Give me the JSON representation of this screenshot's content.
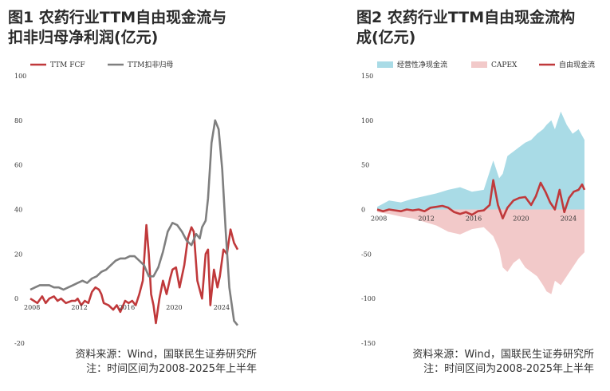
{
  "left_title": {
    "line1": "图1 农药行业TTM自由现金流与",
    "line2": "扣非归母净利润(亿元)"
  },
  "right_title": {
    "line1": "图2 农药行业TTM自由现金流构",
    "line2": "成(亿元)"
  },
  "left_note": {
    "source": "资料来源：Wind，国联民生证券研究所",
    "note": "注：时间区间为2008-2025年上半年"
  },
  "right_note": {
    "source": "资料来源：Wind，国联民生证券研究所",
    "note": "注：时间区间为2008-2025年上半年"
  },
  "colors": {
    "fcf_line": "#c0393b",
    "profit_line": "#7f7f7f",
    "op_cf_area": "#a9dbe6",
    "capex_area": "#f2c9c9",
    "title": "#2b2b2b"
  },
  "chart_data": [
    {
      "type": "line",
      "xlim": [
        2008,
        2025.5
      ],
      "ylim": [
        -20,
        100
      ],
      "yticks": [
        -20,
        0,
        20,
        40,
        60,
        80,
        100
      ],
      "xticks": [
        2008,
        2012,
        2016,
        2020,
        2024
      ],
      "legend": "top-left",
      "series": [
        {
          "name": "TTM FCF",
          "color": "#c0393b",
          "x": [
            2008.0,
            2008.3,
            2008.6,
            2009.0,
            2009.3,
            2009.6,
            2010.0,
            2010.3,
            2010.6,
            2011.0,
            2011.5,
            2011.8,
            2012.0,
            2012.3,
            2012.6,
            2012.9,
            2013.2,
            2013.5,
            2013.8,
            2014.0,
            2014.2,
            2014.6,
            2015.0,
            2015.3,
            2015.6,
            2016.0,
            2016.3,
            2016.6,
            2016.9,
            2017.2,
            2017.5,
            2017.8,
            2018.0,
            2018.2,
            2018.4,
            2018.6,
            2018.9,
            2019.2,
            2019.5,
            2019.8,
            2020.0,
            2020.3,
            2020.6,
            2021.0,
            2021.3,
            2021.6,
            2021.8,
            2022.1,
            2022.5,
            2022.8,
            2023.0,
            2023.2,
            2023.5,
            2023.8,
            2024.0,
            2024.3,
            2024.6,
            2024.9,
            2025.2,
            2025.5
          ],
          "values": [
            0,
            -1,
            -2,
            1,
            -2,
            0,
            1,
            -1,
            0,
            -2,
            -1,
            -1,
            0,
            -3,
            -1,
            -2,
            3,
            5,
            4,
            2,
            -2,
            -3,
            -5,
            -3,
            -6,
            -1,
            -2,
            -1,
            -3,
            2,
            8,
            33,
            20,
            2,
            -3,
            -11,
            0,
            8,
            2,
            9,
            13,
            14,
            5,
            15,
            27,
            32,
            30,
            8,
            0,
            20,
            22,
            -3,
            13,
            5,
            10,
            22,
            20,
            31,
            25,
            22
          ]
        },
        {
          "name": "TTM扣非归母",
          "color": "#7f7f7f",
          "x": [
            2008.0,
            2008.4,
            2008.8,
            2009.2,
            2009.6,
            2010.0,
            2010.4,
            2010.8,
            2011.2,
            2011.6,
            2012.0,
            2012.4,
            2012.8,
            2013.2,
            2013.6,
            2014.0,
            2014.4,
            2014.8,
            2015.2,
            2015.6,
            2016.0,
            2016.4,
            2016.8,
            2017.2,
            2017.6,
            2018.0,
            2018.4,
            2018.8,
            2019.2,
            2019.6,
            2020.0,
            2020.4,
            2020.8,
            2021.2,
            2021.6,
            2022.0,
            2022.3,
            2022.5,
            2022.8,
            2023.0,
            2023.3,
            2023.6,
            2023.9,
            2024.2,
            2024.5,
            2024.8,
            2025.2,
            2025.5
          ],
          "values": [
            4,
            5,
            6,
            6,
            6,
            5,
            5,
            4,
            5,
            6,
            7,
            8,
            7,
            9,
            10,
            12,
            13,
            15,
            17,
            18,
            18,
            19,
            19,
            17,
            15,
            10,
            10,
            14,
            21,
            30,
            34,
            33,
            30,
            26,
            24,
            29,
            27,
            32,
            35,
            45,
            70,
            80,
            76,
            58,
            30,
            5,
            -10,
            -12
          ]
        }
      ]
    },
    {
      "type": "area",
      "xlim": [
        2008,
        2025.5
      ],
      "ylim": [
        -150,
        150
      ],
      "yticks": [
        -150,
        -100,
        -50,
        0,
        50,
        100,
        150
      ],
      "xticks": [
        2008,
        2012,
        2016,
        2020,
        2024
      ],
      "legend": "top",
      "series": [
        {
          "name": "经营性净现金流",
          "kind": "area",
          "color": "#a9dbe6",
          "x": [
            2008.0,
            2009.0,
            2010.0,
            2011.0,
            2012.0,
            2013.0,
            2014.0,
            2015.0,
            2016.0,
            2017.0,
            2017.8,
            2018.3,
            2018.6,
            2019.0,
            2019.5,
            2020.0,
            2020.5,
            2021.0,
            2021.5,
            2022.0,
            2022.3,
            2022.7,
            2023.0,
            2023.5,
            2024.0,
            2024.5,
            2025.0,
            2025.5
          ],
          "values": [
            3,
            10,
            8,
            12,
            15,
            18,
            22,
            25,
            20,
            22,
            55,
            35,
            40,
            60,
            65,
            70,
            75,
            78,
            85,
            90,
            95,
            100,
            90,
            110,
            95,
            85,
            90,
            78
          ]
        },
        {
          "name": "CAPEX",
          "kind": "area",
          "color": "#f2c9c9",
          "x": [
            2008.0,
            2009.0,
            2010.0,
            2011.0,
            2012.0,
            2013.0,
            2014.0,
            2015.0,
            2016.0,
            2017.0,
            2017.8,
            2018.3,
            2018.6,
            2019.0,
            2019.5,
            2020.0,
            2020.5,
            2021.0,
            2021.5,
            2022.0,
            2022.3,
            2022.7,
            2023.0,
            2023.5,
            2024.0,
            2024.5,
            2025.0,
            2025.5
          ],
          "values": [
            -3,
            -5,
            -8,
            -10,
            -14,
            -18,
            -25,
            -28,
            -22,
            -20,
            -30,
            -45,
            -65,
            -70,
            -60,
            -55,
            -65,
            -70,
            -75,
            -85,
            -92,
            -95,
            -80,
            -85,
            -75,
            -65,
            -55,
            -48
          ]
        },
        {
          "name": "自由现金流",
          "kind": "line",
          "color": "#c0393b",
          "x": [
            2008.0,
            2008.5,
            2009.0,
            2009.5,
            2010.0,
            2010.5,
            2011.0,
            2011.5,
            2012.0,
            2012.5,
            2013.0,
            2013.5,
            2014.0,
            2014.5,
            2015.0,
            2015.5,
            2016.0,
            2016.5,
            2017.0,
            2017.5,
            2017.8,
            2018.2,
            2018.6,
            2019.0,
            2019.5,
            2020.0,
            2020.5,
            2021.0,
            2021.4,
            2021.8,
            2022.2,
            2022.6,
            2023.0,
            2023.4,
            2023.8,
            2024.2,
            2024.6,
            2025.0,
            2025.3,
            2025.5
          ],
          "values": [
            0,
            -2,
            0,
            -1,
            -2,
            0,
            -1,
            0,
            -2,
            2,
            3,
            4,
            2,
            -3,
            -5,
            -3,
            -6,
            -2,
            -1,
            5,
            33,
            5,
            -10,
            2,
            10,
            13,
            14,
            5,
            15,
            30,
            20,
            8,
            0,
            22,
            -3,
            13,
            20,
            22,
            28,
            22
          ]
        }
      ]
    }
  ]
}
